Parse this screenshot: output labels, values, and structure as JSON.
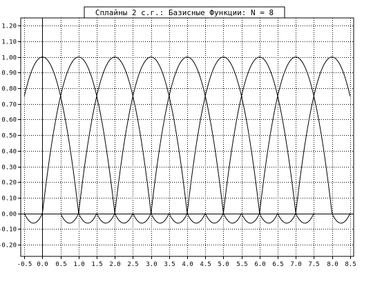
{
  "chart_data": {
    "type": "line",
    "title": "Сплайны 2 с.г.: Базисные Функции: N = 8",
    "xlabel": "",
    "ylabel": "",
    "xlim": [
      -0.6,
      8.6
    ],
    "ylim": [
      -0.275,
      1.25
    ],
    "grid": true,
    "spline_degree": 2,
    "n_intervals": 8,
    "x_ticks": [
      -0.5,
      0,
      0.5,
      1,
      1.5,
      2,
      2.5,
      3,
      3.5,
      4,
      4.5,
      5,
      5.5,
      6,
      6.5,
      7,
      7.5,
      8,
      8.5
    ],
    "x_tick_labels": [
      "-0.5",
      "0.0",
      "0.5",
      "1.0",
      "1.5",
      "2.0",
      "2.5",
      "3.0",
      "3.5",
      "4.0",
      "4.5",
      "5.0",
      "5.5",
      "6.0",
      "6.5",
      "7.0",
      "7.5",
      "8.0",
      "8.5"
    ],
    "y_ticks": [
      -0.2,
      -0.1,
      0,
      0.1,
      0.2,
      0.3,
      0.4,
      0.5,
      0.6,
      0.7,
      0.8,
      0.9,
      1.0,
      1.1,
      1.2
    ],
    "y_tick_labels": [
      "-0.20",
      "-0.10",
      "0.00",
      "0.10",
      "0.20",
      "0.30",
      "0.40",
      "0.50",
      "0.60",
      "0.70",
      "0.80",
      "0.90",
      "1.00",
      "1.10",
      "1.20"
    ],
    "series": [
      {
        "center": 0
      },
      {
        "center": 1
      },
      {
        "center": 2
      },
      {
        "center": 3
      },
      {
        "center": 4
      },
      {
        "center": 5
      },
      {
        "center": 6
      },
      {
        "center": 7
      },
      {
        "center": 8
      }
    ]
  }
}
